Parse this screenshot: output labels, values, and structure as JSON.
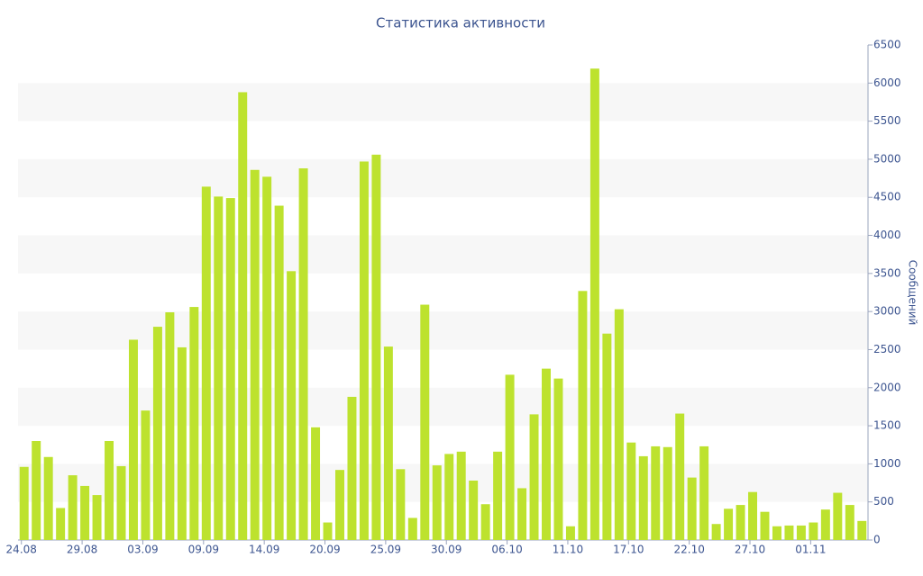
{
  "chart_data": {
    "type": "bar",
    "title": "Статистика активности",
    "y_label": "Сообщений",
    "categories": [
      "24.08",
      null,
      null,
      null,
      null,
      "29.08",
      null,
      null,
      null,
      null,
      "03.09",
      null,
      null,
      null,
      null,
      "09.09",
      null,
      null,
      null,
      null,
      "14.09",
      null,
      null,
      null,
      null,
      "20.09",
      null,
      null,
      null,
      null,
      "25.09",
      null,
      null,
      null,
      null,
      "30.09",
      null,
      null,
      null,
      null,
      "06.10",
      null,
      null,
      null,
      null,
      "11.10",
      null,
      null,
      null,
      null,
      "17.10",
      null,
      null,
      null,
      null,
      "22.10",
      null,
      null,
      null,
      null,
      "27.10",
      null,
      null,
      null,
      null,
      "01.11",
      null,
      null,
      null,
      null
    ],
    "values": [
      960,
      1300,
      1090,
      420,
      850,
      710,
      590,
      1300,
      970,
      2630,
      1700,
      2800,
      2990,
      2530,
      3060,
      4640,
      4510,
      4490,
      5880,
      4860,
      4770,
      4390,
      3530,
      4880,
      1480,
      230,
      920,
      1880,
      4970,
      5060,
      2540,
      930,
      290,
      3090,
      980,
      1130,
      1160,
      780,
      470,
      1160,
      2170,
      680,
      1650,
      2250,
      2120,
      180,
      3270,
      6190,
      2710,
      3030,
      1280,
      1100,
      1230,
      1220,
      1660,
      820,
      1230,
      210,
      410,
      460,
      630,
      370,
      180,
      190,
      190,
      230,
      400,
      620,
      460,
      250
    ],
    "color": "#bde22e",
    "ylim": [
      0,
      6500
    ],
    "yticks": [
      0,
      500,
      1000,
      1500,
      2000,
      2500,
      3000,
      3500,
      4000,
      4500,
      5000,
      5500,
      6000,
      6500
    ],
    "grid": true
  }
}
